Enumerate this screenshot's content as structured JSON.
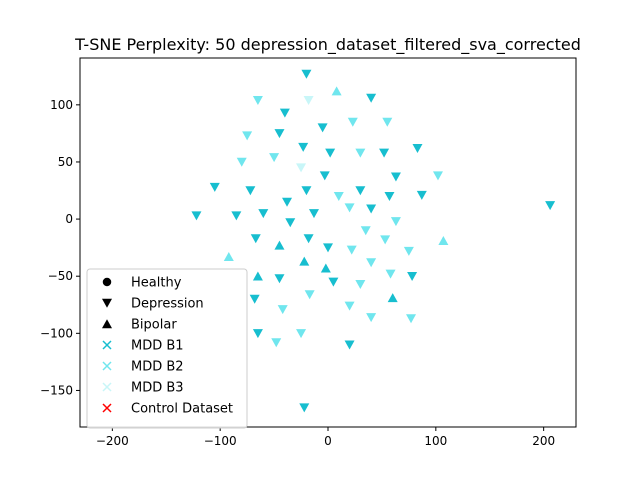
{
  "chart_data": {
    "type": "scatter",
    "title": "T-SNE Perplexity: 50 depression_dataset_filtered_sva_corrected",
    "xlabel": "",
    "ylabel": "",
    "xlim": [
      -230,
      230
    ],
    "ylim": [
      -182,
      141
    ],
    "x_ticks": [
      -200,
      -100,
      0,
      100,
      200
    ],
    "y_ticks": [
      -150,
      -100,
      -50,
      0,
      50,
      100
    ],
    "x_tick_labels": [
      "−200",
      "−100",
      "0",
      "100",
      "200"
    ],
    "y_tick_labels": [
      "−150",
      "−100",
      "−50",
      "0",
      "50",
      "100"
    ],
    "grid": false,
    "legend_position": "lower-left",
    "legend": [
      {
        "label": "Healthy",
        "marker": "circle",
        "color": "#000000"
      },
      {
        "label": "Depression",
        "marker": "triangle-down",
        "color": "#000000"
      },
      {
        "label": "Bipolar",
        "marker": "triangle-up",
        "color": "#000000"
      },
      {
        "label": "MDD B1",
        "marker": "x",
        "color": "#17becf"
      },
      {
        "label": "MDD B2",
        "marker": "x",
        "color": "#70e6ee"
      },
      {
        "label": "MDD B3",
        "marker": "x",
        "color": "#c8f6f8"
      },
      {
        "label": "Control Dataset",
        "marker": "x",
        "color": "#ff0000"
      }
    ],
    "series": [
      {
        "name": "Depression MDD B1",
        "marker": "triangle-down",
        "color": "#17becf",
        "points": [
          [
            -20,
            127
          ],
          [
            -40,
            93
          ],
          [
            -45,
            75
          ],
          [
            -5,
            80
          ],
          [
            -23,
            63
          ],
          [
            2,
            58
          ],
          [
            40,
            106
          ],
          [
            52,
            58
          ],
          [
            83,
            62
          ],
          [
            -3,
            38
          ],
          [
            63,
            37
          ],
          [
            -20,
            25
          ],
          [
            30,
            25
          ],
          [
            57,
            20
          ],
          [
            87,
            21
          ],
          [
            206,
            12
          ],
          [
            -122,
            3
          ],
          [
            -85,
            3
          ],
          [
            -60,
            5
          ],
          [
            -38,
            15
          ],
          [
            -13,
            5
          ],
          [
            40,
            9
          ],
          [
            -35,
            -3
          ],
          [
            -67,
            -17
          ],
          [
            -18,
            -17
          ],
          [
            0,
            -25
          ],
          [
            -45,
            -52
          ],
          [
            5,
            -55
          ],
          [
            78,
            -50
          ],
          [
            -68,
            -70
          ],
          [
            -65,
            -100
          ],
          [
            20,
            -110
          ],
          [
            -22,
            -165
          ],
          [
            -72,
            25
          ],
          [
            -105,
            28
          ]
        ]
      },
      {
        "name": "Depression MDD B2",
        "marker": "triangle-down",
        "color": "#70e6ee",
        "points": [
          [
            -65,
            104
          ],
          [
            -75,
            73
          ],
          [
            -80,
            50
          ],
          [
            -50,
            54
          ],
          [
            23,
            85
          ],
          [
            55,
            85
          ],
          [
            30,
            58
          ],
          [
            102,
            38
          ],
          [
            10,
            20
          ],
          [
            20,
            10
          ],
          [
            35,
            -10
          ],
          [
            63,
            -2
          ],
          [
            53,
            -18
          ],
          [
            75,
            -28
          ],
          [
            22,
            -27
          ],
          [
            40,
            -38
          ],
          [
            58,
            -48
          ],
          [
            30,
            -57
          ],
          [
            20,
            -76
          ],
          [
            -42,
            -79
          ],
          [
            -17,
            -66
          ],
          [
            40,
            -86
          ],
          [
            77,
            -87
          ],
          [
            -48,
            -108
          ],
          [
            -25,
            -100
          ]
        ]
      },
      {
        "name": "Depression MDD B3",
        "marker": "triangle-down",
        "color": "#c8f6f8",
        "points": [
          [
            -18,
            104
          ],
          [
            -25,
            45
          ]
        ]
      },
      {
        "name": "Bipolar MDD B1",
        "marker": "triangle-up",
        "color": "#17becf",
        "points": [
          [
            -45,
            -23
          ],
          [
            -22,
            -37
          ],
          [
            -65,
            -50
          ],
          [
            -2,
            -43
          ],
          [
            60,
            -69
          ]
        ]
      },
      {
        "name": "Bipolar MDD B2",
        "marker": "triangle-up",
        "color": "#70e6ee",
        "points": [
          [
            8,
            112
          ],
          [
            107,
            -19
          ],
          [
            -92,
            -33
          ]
        ]
      }
    ]
  }
}
